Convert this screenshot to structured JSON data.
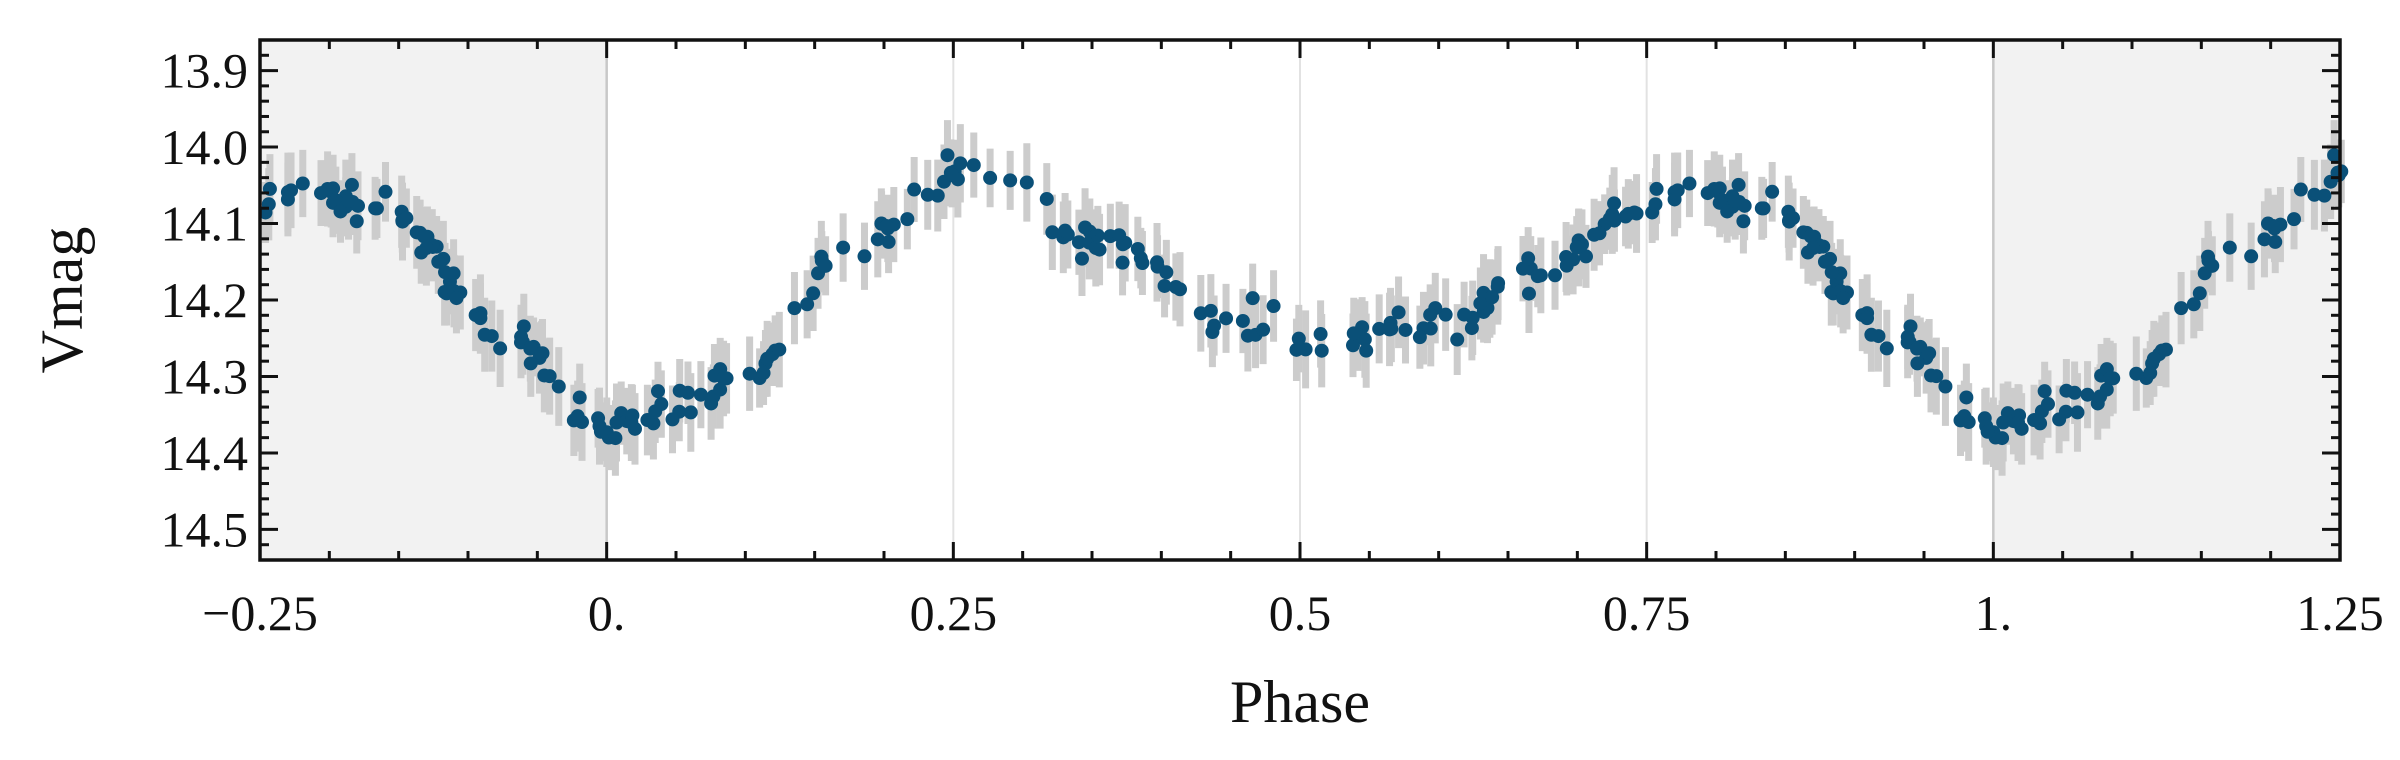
{
  "chart_data": {
    "type": "scatter",
    "title": "",
    "xlabel": "Phase",
    "ylabel": "Vmag",
    "xlim": [
      -0.25,
      1.25
    ],
    "ylim": [
      14.54,
      13.86
    ],
    "y_inverted": true,
    "grid": "vertical lines at major x ticks",
    "shaded_x_ranges": [
      [
        -0.25,
        0.0
      ],
      [
        1.0,
        1.25
      ]
    ],
    "x_ticks": [
      -0.25,
      0.0,
      0.25,
      0.5,
      0.75,
      1.0,
      1.25
    ],
    "x_tick_labels": [
      "−0.25",
      "0.",
      "0.25",
      "0.5",
      "0.75",
      "1.",
      "1.25"
    ],
    "y_ticks": [
      13.9,
      14.0,
      14.1,
      14.2,
      14.3,
      14.4,
      14.5
    ],
    "y_tick_labels": [
      "13.9",
      "14.0",
      "14.1",
      "14.2",
      "14.3",
      "14.4",
      "14.5"
    ],
    "marker_color": "#0a5078",
    "errorbar_color": "#cccccc",
    "shade_color": "#f2f2f2",
    "series": [
      {
        "mark": "points-with-errorbars",
        "curve_anchors": [
          [
            0.0,
            14.37
          ],
          [
            0.11,
            14.29
          ],
          [
            0.17,
            14.14
          ],
          [
            0.265,
            14.02
          ],
          [
            0.36,
            14.13
          ],
          [
            0.46,
            14.23
          ],
          [
            0.52,
            14.26
          ],
          [
            0.6,
            14.23
          ],
          [
            0.67,
            14.17
          ],
          [
            0.74,
            14.08
          ],
          [
            0.775,
            14.05
          ],
          [
            0.84,
            14.08
          ],
          [
            0.93,
            14.25
          ],
          [
            1.0,
            14.38
          ]
        ],
        "error": 0.045,
        "scatter": 0.022,
        "n_points_per_cycle": 240
      }
    ]
  }
}
